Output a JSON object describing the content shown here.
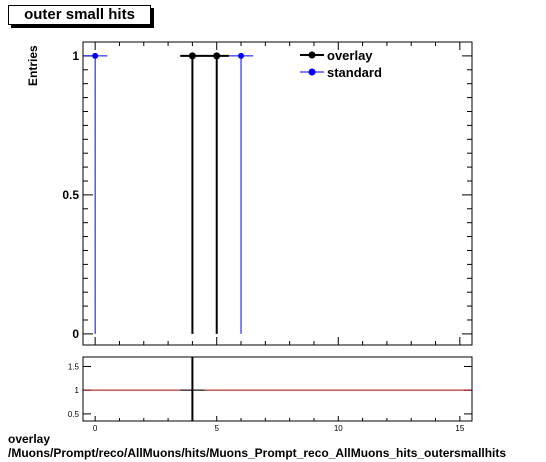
{
  "title": "outer small hits",
  "footer": {
    "line1": "overlay",
    "line2": "/Muons/Prompt/reco/AllMuons/hits/Muons_Prompt_reco_AllMuons_hits_outersmallhits"
  },
  "chart_data": {
    "type": "scatter",
    "title": "outer small hits",
    "ylabel": "Entries",
    "xlabel": "",
    "xlim": [
      -0.5,
      15.5
    ],
    "ylim": [
      -0.04,
      1.05
    ],
    "xticks": [
      0,
      5,
      10,
      15
    ],
    "yticks": [
      0,
      0.5,
      1
    ],
    "ytick_labels": [
      "0",
      "0.5",
      "1"
    ],
    "legend": {
      "placement": "top-right"
    },
    "series": [
      {
        "name": "overlay",
        "color": "#000000",
        "points": [
          {
            "x": 4,
            "y": 1
          },
          {
            "x": 5,
            "y": 1
          }
        ],
        "xerr": 0.5
      },
      {
        "name": "standard",
        "color": "#0000ff",
        "points": [
          {
            "x": 0,
            "y": 1
          },
          {
            "x": 6,
            "y": 1
          }
        ],
        "xerr": 0.5
      }
    ],
    "ratio": {
      "ylim": [
        0.35,
        1.7
      ],
      "yticks": [
        0.5,
        1,
        1.5
      ],
      "ytick_labels": [
        "0.5",
        "1",
        "1.5"
      ],
      "reference": 1,
      "reference_color": "#aa0000",
      "points": [
        {
          "x": 4,
          "y": 1
        }
      ]
    }
  }
}
